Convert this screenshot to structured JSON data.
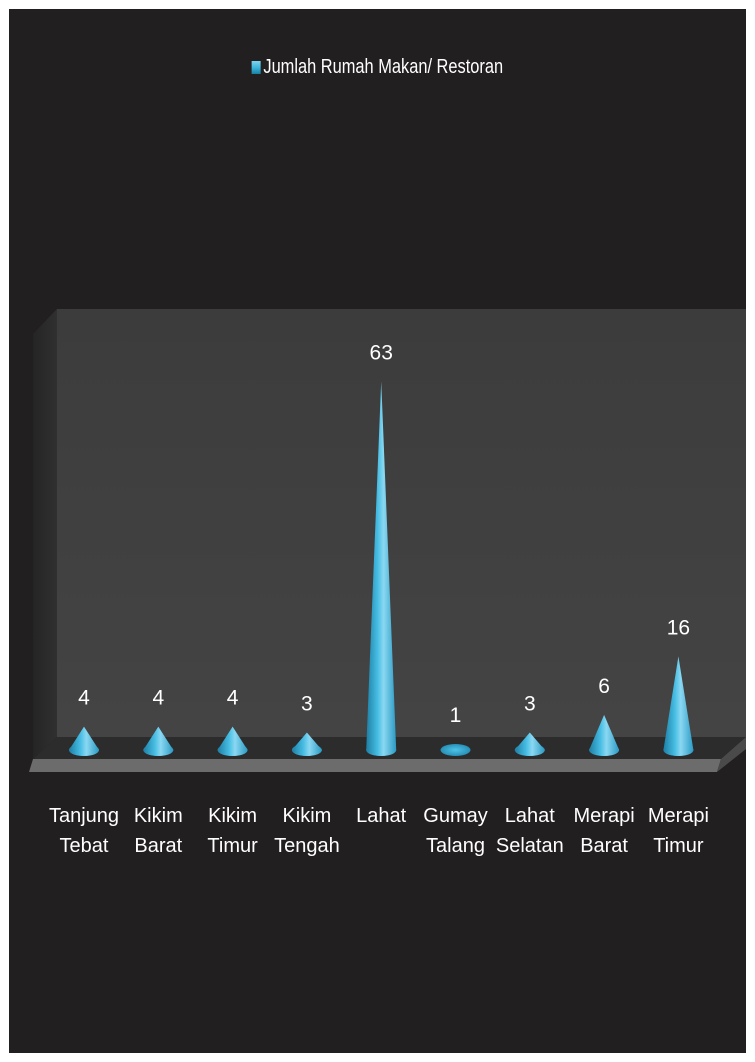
{
  "chart_data": {
    "type": "bar",
    "title": "",
    "xlabel": "",
    "ylabel": "",
    "bar_shape": "cone",
    "legend_position": "top",
    "grid": false,
    "series_color": "#3fb7dd",
    "background_color": "#221f20",
    "categories": [
      [
        "Tanjung",
        "Tebat"
      ],
      [
        "Kikim",
        "Barat"
      ],
      [
        "Kikim",
        "Timur"
      ],
      [
        "Kikim",
        "Tengah"
      ],
      [
        "Lahat"
      ],
      [
        "Gumay",
        "Talang"
      ],
      [
        "Lahat",
        "Selatan"
      ],
      [
        "Merapi",
        "Barat"
      ],
      [
        "Merapi",
        "Timur"
      ]
    ],
    "series": [
      {
        "name": "Jumlah Rumah Makan/ Restoran",
        "values": [
          4,
          4,
          4,
          3,
          63,
          1,
          3,
          6,
          16
        ],
        "data_labels": [
          "4",
          "4",
          "4",
          "3",
          "63",
          "1",
          "3",
          "6",
          "16"
        ]
      }
    ]
  }
}
